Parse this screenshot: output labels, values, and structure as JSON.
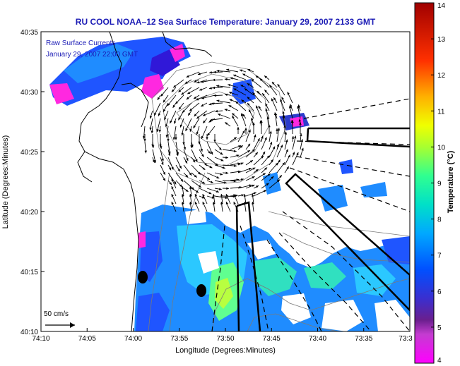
{
  "title": "RU COOL  NOAA–12  Sea Surface Temperature:  January 29, 2007 2133 GMT",
  "currents_legend": {
    "line1": "Raw Surface Currents",
    "line2": "January 29, 2007 22:00 GMT"
  },
  "scale_arrow_label": "50 cm/s",
  "axes": {
    "xlabel": "Longitude (Degrees:Minutes)",
    "ylabel": "Latitude (Degrees:Minutes)",
    "x_ticks": [
      "74:10",
      "74:05",
      "74:00",
      "73:55",
      "73:50",
      "73:45",
      "73:40",
      "73:35",
      "73:3"
    ],
    "y_ticks": [
      "40:35",
      "40:30",
      "40:25",
      "40:20",
      "40:15",
      "40:10"
    ]
  },
  "colorbar": {
    "label": "Temperature (°C)",
    "ticks": [
      "14",
      "13",
      "12",
      "11",
      "10",
      "9",
      "8",
      "7",
      "6",
      "5",
      "4"
    ],
    "range": [
      4,
      14
    ]
  }
}
